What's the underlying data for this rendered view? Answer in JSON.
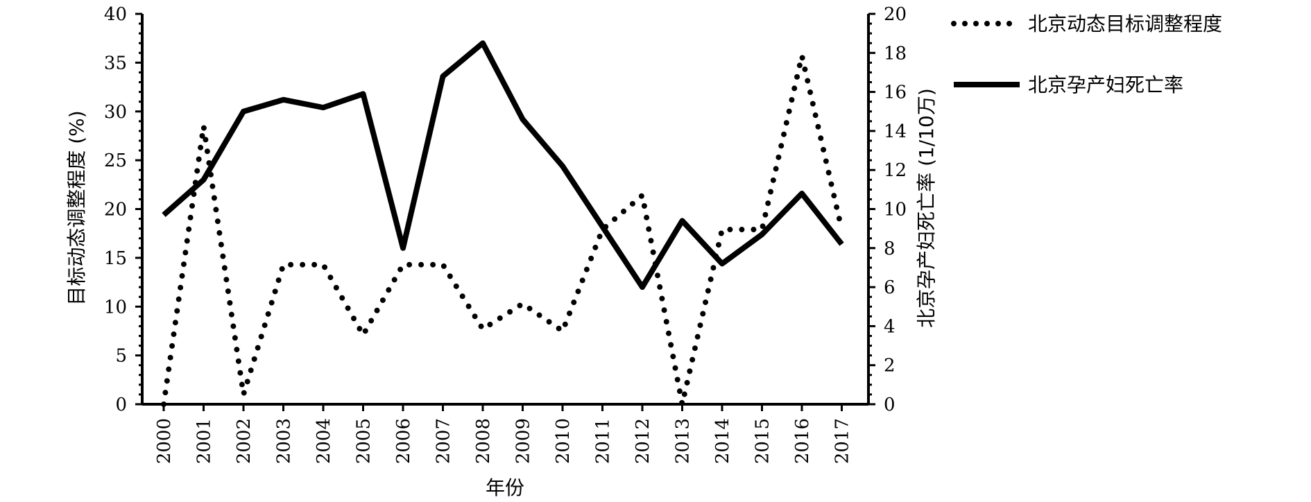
{
  "chart_data": {
    "type": "line",
    "xlabel": "年份",
    "ylabel_left": "目标动态调整程度 (%)",
    "ylabel_right": "北京孕产妇死亡率 (1/10万)",
    "ylim_left": [
      0,
      40
    ],
    "ylim_right": [
      0,
      20
    ],
    "yticks_left": [
      0,
      5,
      10,
      15,
      20,
      25,
      30,
      35,
      40
    ],
    "yticks_right": [
      0,
      2,
      4,
      6,
      8,
      10,
      12,
      14,
      16,
      18,
      20
    ],
    "categories": [
      "2000",
      "2001",
      "2002",
      "2003",
      "2004",
      "2005",
      "2006",
      "2007",
      "2008",
      "2009",
      "2010",
      "2011",
      "2012",
      "2013",
      "2014",
      "2015",
      "2016",
      "2017"
    ],
    "series": [
      {
        "name": "北京动态目标调整程度",
        "axis": "left",
        "style": "dotted",
        "values": [
          0,
          28.5,
          1,
          14.3,
          14.3,
          7.1,
          14.3,
          14.3,
          7.7,
          10.3,
          7.5,
          17.9,
          21.4,
          0,
          17.9,
          17.9,
          35.7,
          17.9
        ]
      },
      {
        "name": "北京孕产妇死亡率",
        "axis": "right",
        "style": "solid",
        "values": [
          9.7,
          11.5,
          15.0,
          15.6,
          15.2,
          15.9,
          8.0,
          16.8,
          18.5,
          14.6,
          12.2,
          9.1,
          6.0,
          9.4,
          7.2,
          8.7,
          10.8,
          8.2
        ]
      }
    ],
    "legend_position": "top-right",
    "grid": false
  }
}
